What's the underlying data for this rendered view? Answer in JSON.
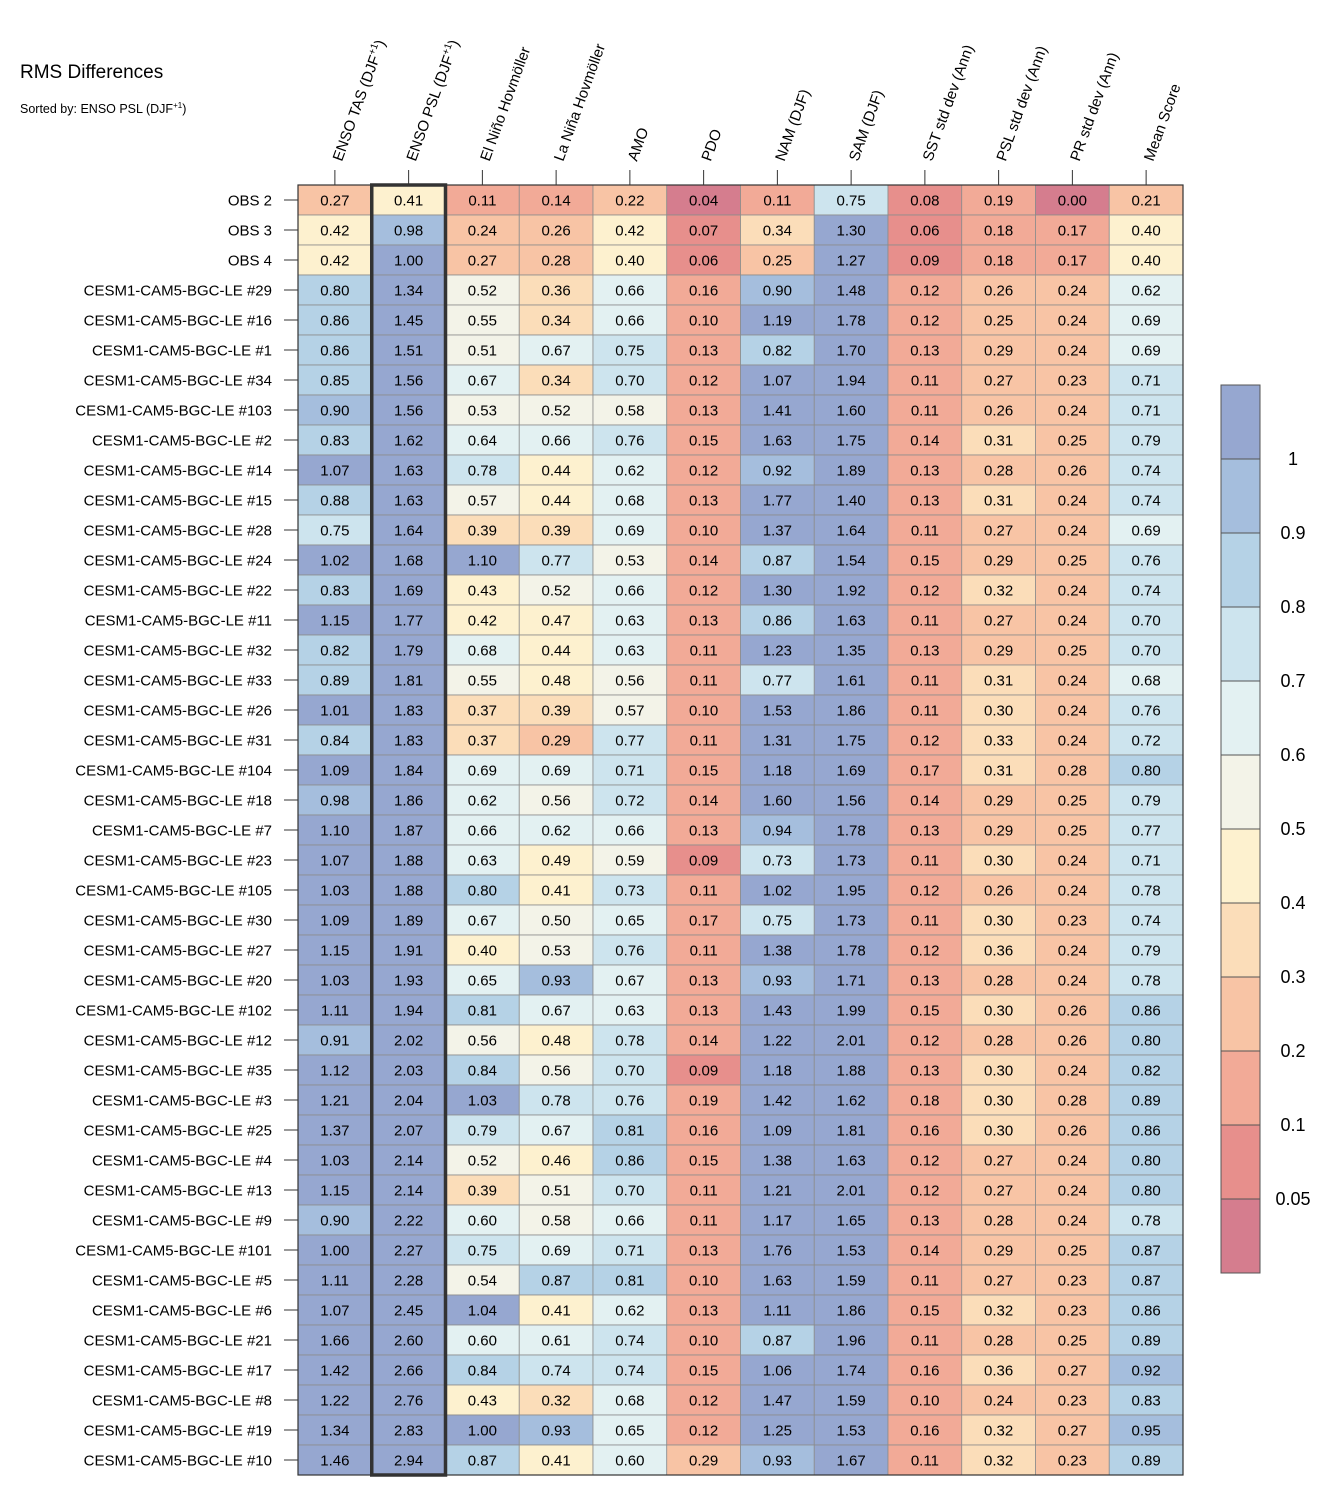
{
  "chart_data": {
    "type": "heatmap",
    "title": "RMS Differences",
    "subtitle": {
      "prefix": "Sorted by: ENSO PSL (DJF",
      "sup": "+1",
      "suffix": ")"
    },
    "highlighted_column": 1,
    "columns": [
      {
        "text": "ENSO TAS (DJF",
        "sup": "+1",
        "suffix": ")"
      },
      {
        "text": "ENSO PSL (DJF",
        "sup": "+1",
        "suffix": ")"
      },
      {
        "text": "El Niño Hovmöller"
      },
      {
        "text": "La Niña Hovmöller"
      },
      {
        "text": "AMO"
      },
      {
        "text": "PDO"
      },
      {
        "text": "NAM (DJF)"
      },
      {
        "text": "SAM (DJF)"
      },
      {
        "text": "SST std dev (Ann)"
      },
      {
        "text": "PSL std dev (Ann)"
      },
      {
        "text": "PR std dev (Ann)"
      },
      {
        "text": "Mean Score"
      }
    ],
    "rows": [
      {
        "label": "OBS 2",
        "values": [
          "0.27",
          "0.41",
          "0.11",
          "0.14",
          "0.22",
          "0.04",
          "0.11",
          "0.75",
          "0.08",
          "0.19",
          "0.00",
          "0.21"
        ]
      },
      {
        "label": "OBS 3",
        "values": [
          "0.42",
          "0.98",
          "0.24",
          "0.26",
          "0.42",
          "0.07",
          "0.34",
          "1.30",
          "0.06",
          "0.18",
          "0.17",
          "0.40"
        ]
      },
      {
        "label": "OBS 4",
        "values": [
          "0.42",
          "1.00",
          "0.27",
          "0.28",
          "0.40",
          "0.06",
          "0.25",
          "1.27",
          "0.09",
          "0.18",
          "0.17",
          "0.40"
        ]
      },
      {
        "label": "CESM1-CAM5-BGC-LE #29",
        "values": [
          "0.80",
          "1.34",
          "0.52",
          "0.36",
          "0.66",
          "0.16",
          "0.90",
          "1.48",
          "0.12",
          "0.26",
          "0.24",
          "0.62"
        ]
      },
      {
        "label": "CESM1-CAM5-BGC-LE #16",
        "values": [
          "0.86",
          "1.45",
          "0.55",
          "0.34",
          "0.66",
          "0.10",
          "1.19",
          "1.78",
          "0.12",
          "0.25",
          "0.24",
          "0.69"
        ]
      },
      {
        "label": "CESM1-CAM5-BGC-LE #1",
        "values": [
          "0.86",
          "1.51",
          "0.51",
          "0.67",
          "0.75",
          "0.13",
          "0.82",
          "1.70",
          "0.13",
          "0.29",
          "0.24",
          "0.69"
        ]
      },
      {
        "label": "CESM1-CAM5-BGC-LE #34",
        "values": [
          "0.85",
          "1.56",
          "0.67",
          "0.34",
          "0.70",
          "0.12",
          "1.07",
          "1.94",
          "0.11",
          "0.27",
          "0.23",
          "0.71"
        ]
      },
      {
        "label": "CESM1-CAM5-BGC-LE #103",
        "values": [
          "0.90",
          "1.56",
          "0.53",
          "0.52",
          "0.58",
          "0.13",
          "1.41",
          "1.60",
          "0.11",
          "0.26",
          "0.24",
          "0.71"
        ]
      },
      {
        "label": "CESM1-CAM5-BGC-LE #2",
        "values": [
          "0.83",
          "1.62",
          "0.64",
          "0.66",
          "0.76",
          "0.15",
          "1.63",
          "1.75",
          "0.14",
          "0.31",
          "0.25",
          "0.79"
        ]
      },
      {
        "label": "CESM1-CAM5-BGC-LE #14",
        "values": [
          "1.07",
          "1.63",
          "0.78",
          "0.44",
          "0.62",
          "0.12",
          "0.92",
          "1.89",
          "0.13",
          "0.28",
          "0.26",
          "0.74"
        ]
      },
      {
        "label": "CESM1-CAM5-BGC-LE #15",
        "values": [
          "0.88",
          "1.63",
          "0.57",
          "0.44",
          "0.68",
          "0.13",
          "1.77",
          "1.40",
          "0.13",
          "0.31",
          "0.24",
          "0.74"
        ]
      },
      {
        "label": "CESM1-CAM5-BGC-LE #28",
        "values": [
          "0.75",
          "1.64",
          "0.39",
          "0.39",
          "0.69",
          "0.10",
          "1.37",
          "1.64",
          "0.11",
          "0.27",
          "0.24",
          "0.69"
        ]
      },
      {
        "label": "CESM1-CAM5-BGC-LE #24",
        "values": [
          "1.02",
          "1.68",
          "1.10",
          "0.77",
          "0.53",
          "0.14",
          "0.87",
          "1.54",
          "0.15",
          "0.29",
          "0.25",
          "0.76"
        ]
      },
      {
        "label": "CESM1-CAM5-BGC-LE #22",
        "values": [
          "0.83",
          "1.69",
          "0.43",
          "0.52",
          "0.66",
          "0.12",
          "1.30",
          "1.92",
          "0.12",
          "0.32",
          "0.24",
          "0.74"
        ]
      },
      {
        "label": "CESM1-CAM5-BGC-LE #11",
        "values": [
          "1.15",
          "1.77",
          "0.42",
          "0.47",
          "0.63",
          "0.13",
          "0.86",
          "1.63",
          "0.11",
          "0.27",
          "0.24",
          "0.70"
        ]
      },
      {
        "label": "CESM1-CAM5-BGC-LE #32",
        "values": [
          "0.82",
          "1.79",
          "0.68",
          "0.44",
          "0.63",
          "0.11",
          "1.23",
          "1.35",
          "0.13",
          "0.29",
          "0.25",
          "0.70"
        ]
      },
      {
        "label": "CESM1-CAM5-BGC-LE #33",
        "values": [
          "0.89",
          "1.81",
          "0.55",
          "0.48",
          "0.56",
          "0.11",
          "0.77",
          "1.61",
          "0.11",
          "0.31",
          "0.24",
          "0.68"
        ]
      },
      {
        "label": "CESM1-CAM5-BGC-LE #26",
        "values": [
          "1.01",
          "1.83",
          "0.37",
          "0.39",
          "0.57",
          "0.10",
          "1.53",
          "1.86",
          "0.11",
          "0.30",
          "0.24",
          "0.76"
        ]
      },
      {
        "label": "CESM1-CAM5-BGC-LE #31",
        "values": [
          "0.84",
          "1.83",
          "0.37",
          "0.29",
          "0.77",
          "0.11",
          "1.31",
          "1.75",
          "0.12",
          "0.33",
          "0.24",
          "0.72"
        ]
      },
      {
        "label": "CESM1-CAM5-BGC-LE #104",
        "values": [
          "1.09",
          "1.84",
          "0.69",
          "0.69",
          "0.71",
          "0.15",
          "1.18",
          "1.69",
          "0.17",
          "0.31",
          "0.28",
          "0.80"
        ]
      },
      {
        "label": "CESM1-CAM5-BGC-LE #18",
        "values": [
          "0.98",
          "1.86",
          "0.62",
          "0.56",
          "0.72",
          "0.14",
          "1.60",
          "1.56",
          "0.14",
          "0.29",
          "0.25",
          "0.79"
        ]
      },
      {
        "label": "CESM1-CAM5-BGC-LE #7",
        "values": [
          "1.10",
          "1.87",
          "0.66",
          "0.62",
          "0.66",
          "0.13",
          "0.94",
          "1.78",
          "0.13",
          "0.29",
          "0.25",
          "0.77"
        ]
      },
      {
        "label": "CESM1-CAM5-BGC-LE #23",
        "values": [
          "1.07",
          "1.88",
          "0.63",
          "0.49",
          "0.59",
          "0.09",
          "0.73",
          "1.73",
          "0.11",
          "0.30",
          "0.24",
          "0.71"
        ]
      },
      {
        "label": "CESM1-CAM5-BGC-LE #105",
        "values": [
          "1.03",
          "1.88",
          "0.80",
          "0.41",
          "0.73",
          "0.11",
          "1.02",
          "1.95",
          "0.12",
          "0.26",
          "0.24",
          "0.78"
        ]
      },
      {
        "label": "CESM1-CAM5-BGC-LE #30",
        "values": [
          "1.09",
          "1.89",
          "0.67",
          "0.50",
          "0.65",
          "0.17",
          "0.75",
          "1.73",
          "0.11",
          "0.30",
          "0.23",
          "0.74"
        ]
      },
      {
        "label": "CESM1-CAM5-BGC-LE #27",
        "values": [
          "1.15",
          "1.91",
          "0.40",
          "0.53",
          "0.76",
          "0.11",
          "1.38",
          "1.78",
          "0.12",
          "0.36",
          "0.24",
          "0.79"
        ]
      },
      {
        "label": "CESM1-CAM5-BGC-LE #20",
        "values": [
          "1.03",
          "1.93",
          "0.65",
          "0.93",
          "0.67",
          "0.13",
          "0.93",
          "1.71",
          "0.13",
          "0.28",
          "0.24",
          "0.78"
        ]
      },
      {
        "label": "CESM1-CAM5-BGC-LE #102",
        "values": [
          "1.11",
          "1.94",
          "0.81",
          "0.67",
          "0.63",
          "0.13",
          "1.43",
          "1.99",
          "0.15",
          "0.30",
          "0.26",
          "0.86"
        ]
      },
      {
        "label": "CESM1-CAM5-BGC-LE #12",
        "values": [
          "0.91",
          "2.02",
          "0.56",
          "0.48",
          "0.78",
          "0.14",
          "1.22",
          "2.01",
          "0.12",
          "0.28",
          "0.26",
          "0.80"
        ]
      },
      {
        "label": "CESM1-CAM5-BGC-LE #35",
        "values": [
          "1.12",
          "2.03",
          "0.84",
          "0.56",
          "0.70",
          "0.09",
          "1.18",
          "1.88",
          "0.13",
          "0.30",
          "0.24",
          "0.82"
        ]
      },
      {
        "label": "CESM1-CAM5-BGC-LE #3",
        "values": [
          "1.21",
          "2.04",
          "1.03",
          "0.78",
          "0.76",
          "0.19",
          "1.42",
          "1.62",
          "0.18",
          "0.30",
          "0.28",
          "0.89"
        ]
      },
      {
        "label": "CESM1-CAM5-BGC-LE #25",
        "values": [
          "1.37",
          "2.07",
          "0.79",
          "0.67",
          "0.81",
          "0.16",
          "1.09",
          "1.81",
          "0.16",
          "0.30",
          "0.26",
          "0.86"
        ]
      },
      {
        "label": "CESM1-CAM5-BGC-LE #4",
        "values": [
          "1.03",
          "2.14",
          "0.52",
          "0.46",
          "0.86",
          "0.15",
          "1.38",
          "1.63",
          "0.12",
          "0.27",
          "0.24",
          "0.80"
        ]
      },
      {
        "label": "CESM1-CAM5-BGC-LE #13",
        "values": [
          "1.15",
          "2.14",
          "0.39",
          "0.51",
          "0.70",
          "0.11",
          "1.21",
          "2.01",
          "0.12",
          "0.27",
          "0.24",
          "0.80"
        ]
      },
      {
        "label": "CESM1-CAM5-BGC-LE #9",
        "values": [
          "0.90",
          "2.22",
          "0.60",
          "0.58",
          "0.66",
          "0.11",
          "1.17",
          "1.65",
          "0.13",
          "0.28",
          "0.24",
          "0.78"
        ]
      },
      {
        "label": "CESM1-CAM5-BGC-LE #101",
        "values": [
          "1.00",
          "2.27",
          "0.75",
          "0.69",
          "0.71",
          "0.13",
          "1.76",
          "1.53",
          "0.14",
          "0.29",
          "0.25",
          "0.87"
        ]
      },
      {
        "label": "CESM1-CAM5-BGC-LE #5",
        "values": [
          "1.11",
          "2.28",
          "0.54",
          "0.87",
          "0.81",
          "0.10",
          "1.63",
          "1.59",
          "0.11",
          "0.27",
          "0.23",
          "0.87"
        ]
      },
      {
        "label": "CESM1-CAM5-BGC-LE #6",
        "values": [
          "1.07",
          "2.45",
          "1.04",
          "0.41",
          "0.62",
          "0.13",
          "1.11",
          "1.86",
          "0.15",
          "0.32",
          "0.23",
          "0.86"
        ]
      },
      {
        "label": "CESM1-CAM5-BGC-LE #21",
        "values": [
          "1.66",
          "2.60",
          "0.60",
          "0.61",
          "0.74",
          "0.10",
          "0.87",
          "1.96",
          "0.11",
          "0.28",
          "0.25",
          "0.89"
        ]
      },
      {
        "label": "CESM1-CAM5-BGC-LE #17",
        "values": [
          "1.42",
          "2.66",
          "0.84",
          "0.74",
          "0.74",
          "0.15",
          "1.06",
          "1.74",
          "0.16",
          "0.36",
          "0.27",
          "0.92"
        ]
      },
      {
        "label": "CESM1-CAM5-BGC-LE #8",
        "values": [
          "1.22",
          "2.76",
          "0.43",
          "0.32",
          "0.68",
          "0.12",
          "1.47",
          "1.59",
          "0.10",
          "0.24",
          "0.23",
          "0.83"
        ]
      },
      {
        "label": "CESM1-CAM5-BGC-LE #19",
        "values": [
          "1.34",
          "2.83",
          "1.00",
          "0.93",
          "0.65",
          "0.12",
          "1.25",
          "1.53",
          "0.16",
          "0.32",
          "0.27",
          "0.95"
        ]
      },
      {
        "label": "CESM1-CAM5-BGC-LE #10",
        "values": [
          "1.46",
          "2.94",
          "0.87",
          "0.41",
          "0.60",
          "0.29",
          "0.93",
          "1.67",
          "0.11",
          "0.32",
          "0.23",
          "0.89"
        ]
      }
    ],
    "colorbar": {
      "boundaries": [
        0.05,
        0.1,
        0.2,
        0.3,
        0.4,
        0.5,
        0.6,
        0.7,
        0.8,
        0.9,
        1
      ],
      "labels": [
        "0.05",
        "0.1",
        "0.2",
        "0.3",
        "0.4",
        "0.5",
        "0.6",
        "0.7",
        "0.8",
        "0.9",
        "1"
      ],
      "colors_low_to_high": [
        "#d57d8e",
        "#e78f8c",
        "#f2aa97",
        "#f8c4a5",
        "#fbddb9",
        "#fdf1cf",
        "#f3f3e8",
        "#e3f1f2",
        "#cde4ee",
        "#b5d2e6",
        "#a5bedd",
        "#96a7d0"
      ]
    }
  }
}
